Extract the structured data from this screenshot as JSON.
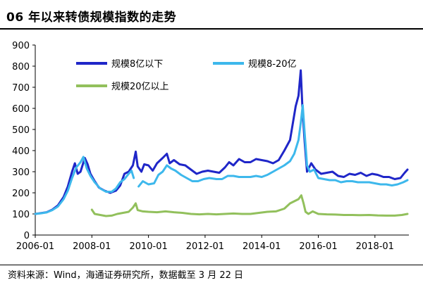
{
  "header": {
    "title": "06 年以来转债规模指数的走势"
  },
  "footer": {
    "source": "资料来源：Wind，海通证券研究所，数据截至 3 月 22 日"
  },
  "chart_data": {
    "type": "line",
    "title": "06 年以来转债规模指数的走势",
    "xlabel": "",
    "ylabel": "",
    "ylim": [
      0,
      900
    ],
    "yticks": [
      0,
      100,
      200,
      300,
      400,
      500,
      600,
      700,
      800,
      900
    ],
    "xlim": [
      2006.0,
      2019.2
    ],
    "xticks": [
      {
        "value": 2006.0,
        "label": "2006-01"
      },
      {
        "value": 2008.0,
        "label": "2008-01"
      },
      {
        "value": 2010.0,
        "label": "2010-01"
      },
      {
        "value": 2012.0,
        "label": "2012-01"
      },
      {
        "value": 2014.0,
        "label": "2014-01"
      },
      {
        "value": 2016.0,
        "label": "2016-01"
      },
      {
        "value": 2018.0,
        "label": "2018-01"
      }
    ],
    "grid": false,
    "legend_position": "top-left",
    "series": [
      {
        "name": "规模8亿以下",
        "color": "#1f26c8",
        "width": 3,
        "segments": [
          [
            [
              2006.0,
              100
            ],
            [
              2006.2,
              104
            ],
            [
              2006.4,
              108
            ],
            [
              2006.6,
              120
            ],
            [
              2006.8,
              140
            ],
            [
              2007.0,
              180
            ],
            [
              2007.15,
              230
            ],
            [
              2007.3,
              300
            ],
            [
              2007.4,
              340
            ],
            [
              2007.5,
              290
            ],
            [
              2007.6,
              300
            ],
            [
              2007.75,
              365
            ],
            [
              2007.85,
              335
            ],
            [
              2007.95,
              290
            ],
            [
              2008.1,
              255
            ],
            [
              2008.25,
              225
            ],
            [
              2008.45,
              210
            ],
            [
              2008.65,
              200
            ],
            [
              2008.85,
              210
            ],
            [
              2009.0,
              235
            ],
            [
              2009.15,
              290
            ],
            [
              2009.3,
              300
            ],
            [
              2009.45,
              330
            ],
            [
              2009.55,
              395
            ],
            [
              2009.62,
              325
            ],
            [
              2009.75,
              300
            ],
            [
              2009.85,
              335
            ],
            [
              2010.0,
              330
            ],
            [
              2010.15,
              305
            ],
            [
              2010.3,
              340
            ],
            [
              2010.5,
              365
            ],
            [
              2010.65,
              385
            ],
            [
              2010.75,
              340
            ],
            [
              2010.9,
              355
            ],
            [
              2011.1,
              335
            ],
            [
              2011.3,
              330
            ],
            [
              2011.5,
              310
            ],
            [
              2011.7,
              290
            ],
            [
              2011.9,
              300
            ],
            [
              2012.1,
              305
            ],
            [
              2012.3,
              300
            ],
            [
              2012.5,
              295
            ],
            [
              2012.7,
              320
            ],
            [
              2012.85,
              345
            ],
            [
              2013.0,
              330
            ],
            [
              2013.2,
              360
            ],
            [
              2013.4,
              345
            ],
            [
              2013.6,
              345
            ],
            [
              2013.8,
              360
            ],
            [
              2014.0,
              355
            ],
            [
              2014.2,
              350
            ],
            [
              2014.4,
              340
            ],
            [
              2014.6,
              355
            ],
            [
              2014.8,
              400
            ],
            [
              2015.0,
              450
            ],
            [
              2015.1,
              530
            ],
            [
              2015.2,
              610
            ],
            [
              2015.3,
              660
            ],
            [
              2015.38,
              780
            ],
            [
              2015.44,
              600
            ],
            [
              2015.52,
              440
            ],
            [
              2015.6,
              300
            ],
            [
              2015.75,
              340
            ],
            [
              2015.9,
              310
            ],
            [
              2016.1,
              290
            ],
            [
              2016.3,
              295
            ],
            [
              2016.5,
              300
            ],
            [
              2016.7,
              280
            ],
            [
              2016.9,
              275
            ],
            [
              2017.1,
              290
            ],
            [
              2017.3,
              285
            ],
            [
              2017.5,
              295
            ],
            [
              2017.7,
              280
            ],
            [
              2017.9,
              290
            ],
            [
              2018.1,
              285
            ],
            [
              2018.3,
              275
            ],
            [
              2018.5,
              275
            ],
            [
              2018.7,
              265
            ],
            [
              2018.9,
              270
            ],
            [
              2019.05,
              295
            ],
            [
              2019.15,
              310
            ]
          ]
        ]
      },
      {
        "name": "规模8-20亿",
        "color": "#3db8ec",
        "width": 3,
        "segments": [
          [
            [
              2006.0,
              100
            ],
            [
              2006.2,
              103
            ],
            [
              2006.4,
              107
            ],
            [
              2006.6,
              118
            ],
            [
              2006.8,
              135
            ],
            [
              2007.0,
              170
            ],
            [
              2007.15,
              210
            ],
            [
              2007.3,
              270
            ],
            [
              2007.45,
              320
            ],
            [
              2007.6,
              345
            ],
            [
              2007.7,
              370
            ],
            [
              2007.82,
              315
            ],
            [
              2007.95,
              280
            ],
            [
              2008.1,
              250
            ],
            [
              2008.3,
              220
            ],
            [
              2008.5,
              205
            ],
            [
              2008.7,
              205
            ],
            [
              2008.85,
              220
            ],
            [
              2009.0,
              250
            ],
            [
              2009.15,
              265
            ],
            [
              2009.3,
              290
            ],
            [
              2009.4,
              305
            ],
            [
              2009.48,
              270
            ]
          ],
          [
            [
              2009.65,
              230
            ],
            [
              2009.8,
              255
            ],
            [
              2010.0,
              240
            ],
            [
              2010.2,
              245
            ],
            [
              2010.35,
              285
            ],
            [
              2010.5,
              300
            ],
            [
              2010.65,
              330
            ],
            [
              2010.8,
              315
            ],
            [
              2010.95,
              305
            ],
            [
              2011.15,
              285
            ],
            [
              2011.35,
              270
            ],
            [
              2011.55,
              255
            ],
            [
              2011.75,
              255
            ],
            [
              2011.95,
              265
            ],
            [
              2012.15,
              270
            ],
            [
              2012.4,
              265
            ],
            [
              2012.6,
              265
            ],
            [
              2012.8,
              280
            ],
            [
              2013.0,
              280
            ],
            [
              2013.2,
              275
            ],
            [
              2013.4,
              275
            ],
            [
              2013.6,
              275
            ],
            [
              2013.8,
              280
            ],
            [
              2014.0,
              275
            ],
            [
              2014.2,
              285
            ],
            [
              2014.4,
              300
            ],
            [
              2014.6,
              315
            ],
            [
              2014.8,
              330
            ],
            [
              2015.0,
              350
            ],
            [
              2015.15,
              385
            ],
            [
              2015.3,
              450
            ],
            [
              2015.38,
              530
            ],
            [
              2015.45,
              615
            ],
            [
              2015.52,
              480
            ],
            [
              2015.6,
              330
            ],
            [
              2015.7,
              300
            ],
            [
              2015.85,
              310
            ],
            [
              2016.0,
              270
            ],
            [
              2016.2,
              265
            ],
            [
              2016.4,
              260
            ],
            [
              2016.6,
              260
            ],
            [
              2016.8,
              250
            ],
            [
              2017.0,
              255
            ],
            [
              2017.2,
              255
            ],
            [
              2017.4,
              250
            ],
            [
              2017.6,
              250
            ],
            [
              2017.8,
              250
            ],
            [
              2018.0,
              245
            ],
            [
              2018.2,
              240
            ],
            [
              2018.4,
              240
            ],
            [
              2018.6,
              235
            ],
            [
              2018.8,
              240
            ],
            [
              2019.0,
              250
            ],
            [
              2019.15,
              260
            ]
          ]
        ]
      },
      {
        "name": "规模20亿以上",
        "color": "#92c05c",
        "width": 3,
        "segments": [
          [
            [
              2008.0,
              120
            ],
            [
              2008.1,
              100
            ],
            [
              2008.3,
              95
            ],
            [
              2008.5,
              90
            ],
            [
              2008.7,
              92
            ],
            [
              2008.9,
              100
            ],
            [
              2009.1,
              105
            ],
            [
              2009.3,
              110
            ],
            [
              2009.45,
              130
            ],
            [
              2009.55,
              150
            ],
            [
              2009.62,
              118
            ],
            [
              2009.8,
              112
            ],
            [
              2010.0,
              110
            ],
            [
              2010.3,
              108
            ],
            [
              2010.6,
              112
            ],
            [
              2010.9,
              108
            ],
            [
              2011.2,
              105
            ],
            [
              2011.5,
              100
            ],
            [
              2011.8,
              98
            ],
            [
              2012.1,
              100
            ],
            [
              2012.4,
              98
            ],
            [
              2012.7,
              100
            ],
            [
              2013.0,
              102
            ],
            [
              2013.3,
              100
            ],
            [
              2013.6,
              100
            ],
            [
              2013.9,
              105
            ],
            [
              2014.2,
              110
            ],
            [
              2014.5,
              112
            ],
            [
              2014.8,
              125
            ],
            [
              2015.0,
              150
            ],
            [
              2015.15,
              160
            ],
            [
              2015.3,
              170
            ],
            [
              2015.4,
              188
            ],
            [
              2015.48,
              150
            ],
            [
              2015.55,
              110
            ],
            [
              2015.65,
              100
            ],
            [
              2015.8,
              112
            ],
            [
              2016.0,
              100
            ],
            [
              2016.3,
              98
            ],
            [
              2016.6,
              97
            ],
            [
              2016.9,
              95
            ],
            [
              2017.2,
              95
            ],
            [
              2017.5,
              94
            ],
            [
              2017.8,
              95
            ],
            [
              2018.1,
              93
            ],
            [
              2018.4,
              92
            ],
            [
              2018.7,
              92
            ],
            [
              2018.95,
              95
            ],
            [
              2019.15,
              100
            ]
          ]
        ]
      }
    ]
  }
}
